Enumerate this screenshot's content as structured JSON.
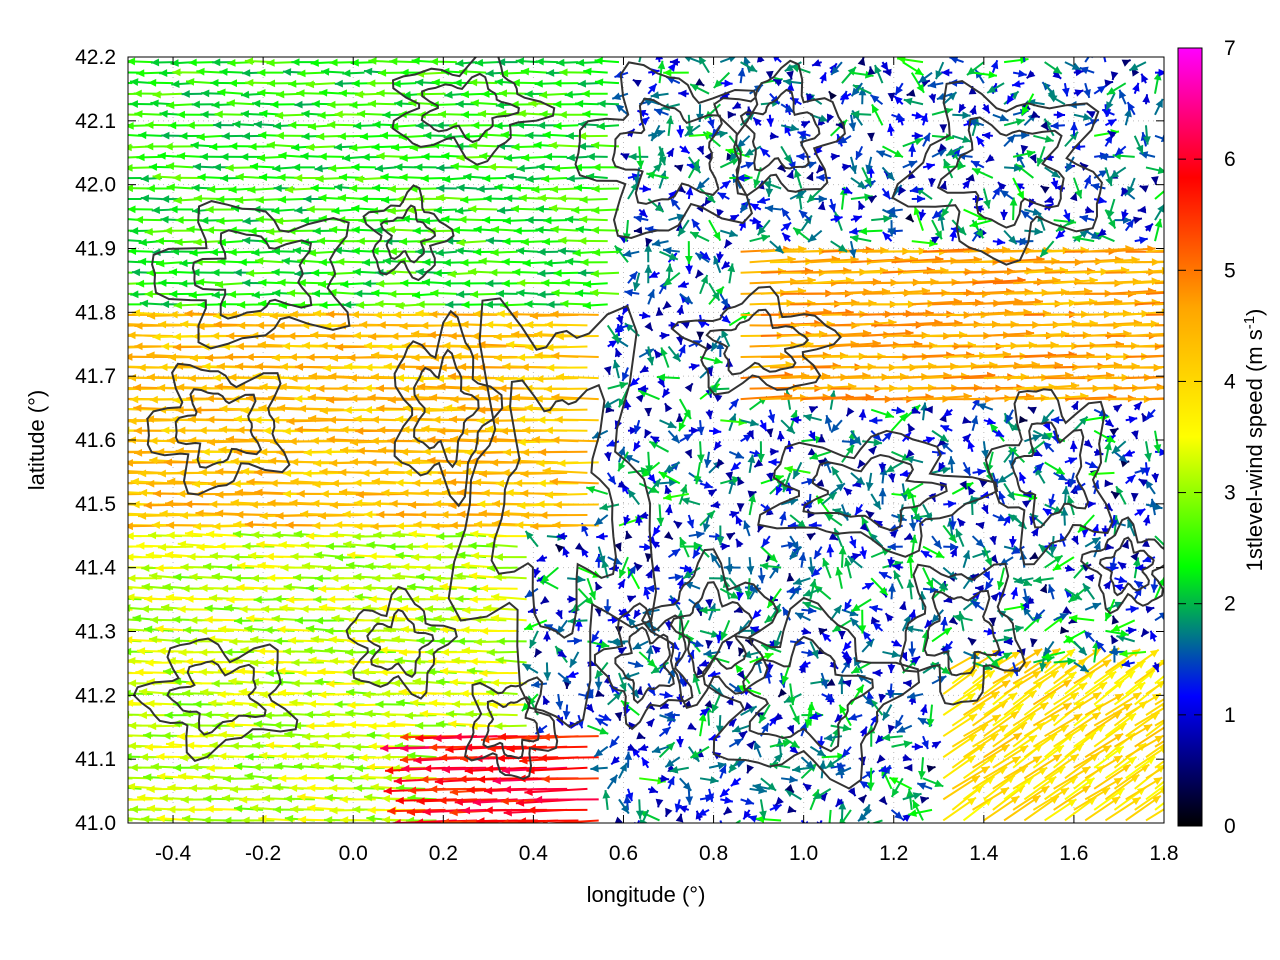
{
  "chart_data": {
    "type": "vector-field",
    "xlabel": "longitude (°)",
    "ylabel": "latitude (°)",
    "xlim": [
      -0.5,
      1.8
    ],
    "ylim": [
      41.0,
      42.2
    ],
    "x_ticks": [
      "-0.4",
      "-0.2",
      "0.0",
      "0.2",
      "0.4",
      "0.6",
      "0.8",
      "1.0",
      "1.2",
      "1.4",
      "1.6",
      "1.8"
    ],
    "y_ticks": [
      "41.0",
      "41.1",
      "41.2",
      "41.3",
      "41.4",
      "41.5",
      "41.6",
      "41.7",
      "41.8",
      "41.9",
      "42.0",
      "42.1",
      "42.2"
    ],
    "grid": "dotted",
    "colorbar": {
      "label": "1stlevel-wind speed (m s",
      "label_sup": "-1",
      "label_end": ")",
      "range": [
        0,
        7
      ],
      "ticks": [
        "0",
        "1",
        "2",
        "3",
        "4",
        "5",
        "6",
        "7"
      ],
      "colors": [
        "#000000",
        "#0000ff",
        "#00ff00",
        "#ffff00",
        "#ffa500",
        "#ff0000",
        "#ff00ff"
      ]
    },
    "wind_regions": [
      {
        "lon": [
          -0.5,
          0.55
        ],
        "lat": [
          41.45,
          41.8
        ],
        "u": -4.3,
        "v": 0.05,
        "note": "strong westward flow west"
      },
      {
        "lon": [
          -0.5,
          0.4
        ],
        "lat": [
          41.0,
          41.45
        ],
        "u": -3.2,
        "v": 0.1,
        "note": "moderate westward flow southwest"
      },
      {
        "lon": [
          -0.5,
          0.6
        ],
        "lat": [
          41.8,
          42.2
        ],
        "u": -2.4,
        "v": 0.0,
        "note": "weaker westward flow north"
      },
      {
        "lon": [
          0.85,
          1.8
        ],
        "lat": [
          41.65,
          41.9
        ],
        "u": 4.6,
        "v": 0.15,
        "note": "strong eastward band"
      },
      {
        "lon": [
          1.3,
          1.8
        ],
        "lat": [
          41.0,
          41.25
        ],
        "u": 3.2,
        "v": 2.2,
        "note": "northeastward flow southeast"
      },
      {
        "lon": [
          0.2,
          0.55
        ],
        "lat": [
          41.0,
          41.15
        ],
        "u": -5.8,
        "v": -0.2,
        "note": "strongest westward near coast"
      }
    ],
    "contours": "black topography isolines"
  }
}
